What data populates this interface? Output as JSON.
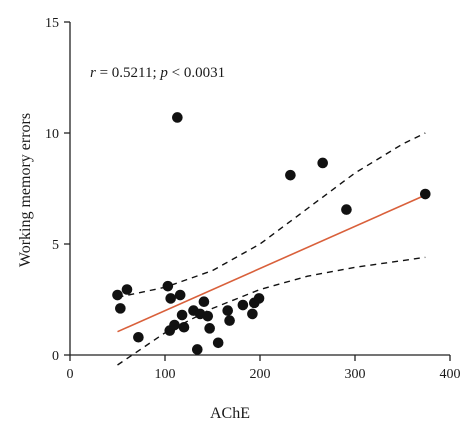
{
  "chart_data": {
    "type": "scatter",
    "xlabel": "AChE",
    "ylabel": "Working memory errors",
    "xlim": [
      0,
      400
    ],
    "ylim": [
      0,
      15
    ],
    "xticks": [
      "0",
      "100",
      "200",
      "300",
      "400"
    ],
    "yticks": [
      "0",
      "5",
      "10",
      "15"
    ],
    "grid": false,
    "annotation": {
      "r_symbol": "r",
      "r_value": " = 0.5211; ",
      "p_symbol": "p",
      "p_value": " < 0.0031"
    },
    "colors": {
      "points": "#111111",
      "fit_line": "#d9603b",
      "confidence_band": "#111111",
      "axes": "#222222"
    },
    "points": [
      {
        "x": 50,
        "y": 2.7
      },
      {
        "x": 53,
        "y": 2.1
      },
      {
        "x": 60,
        "y": 2.95
      },
      {
        "x": 72,
        "y": 0.8
      },
      {
        "x": 103,
        "y": 3.1
      },
      {
        "x": 105,
        "y": 1.1
      },
      {
        "x": 106,
        "y": 2.55
      },
      {
        "x": 110,
        "y": 1.35
      },
      {
        "x": 113,
        "y": 10.7
      },
      {
        "x": 116,
        "y": 2.7
      },
      {
        "x": 118,
        "y": 1.8
      },
      {
        "x": 120,
        "y": 1.25
      },
      {
        "x": 130,
        "y": 2.0
      },
      {
        "x": 134,
        "y": 0.25
      },
      {
        "x": 137,
        "y": 1.85
      },
      {
        "x": 141,
        "y": 2.4
      },
      {
        "x": 145,
        "y": 1.75
      },
      {
        "x": 147,
        "y": 1.2
      },
      {
        "x": 156,
        "y": 0.55
      },
      {
        "x": 166,
        "y": 2.0
      },
      {
        "x": 168,
        "y": 1.55
      },
      {
        "x": 182,
        "y": 2.25
      },
      {
        "x": 192,
        "y": 1.85
      },
      {
        "x": 194,
        "y": 2.35
      },
      {
        "x": 199,
        "y": 2.55
      },
      {
        "x": 232,
        "y": 8.1
      },
      {
        "x": 266,
        "y": 8.65
      },
      {
        "x": 291,
        "y": 6.55
      },
      {
        "x": 374,
        "y": 7.25
      }
    ],
    "fit_line": [
      {
        "x": 50,
        "y": 1.05
      },
      {
        "x": 374,
        "y": 7.2
      }
    ],
    "confidence_upper": [
      {
        "x": 50,
        "y": 2.6
      },
      {
        "x": 100,
        "y": 3.05
      },
      {
        "x": 150,
        "y": 3.8
      },
      {
        "x": 200,
        "y": 5.0
      },
      {
        "x": 250,
        "y": 6.6
      },
      {
        "x": 300,
        "y": 8.2
      },
      {
        "x": 350,
        "y": 9.5
      },
      {
        "x": 374,
        "y": 10.0
      }
    ],
    "confidence_lower": [
      {
        "x": 50,
        "y": -0.45
      },
      {
        "x": 100,
        "y": 1.0
      },
      {
        "x": 150,
        "y": 2.1
      },
      {
        "x": 200,
        "y": 2.95
      },
      {
        "x": 250,
        "y": 3.55
      },
      {
        "x": 300,
        "y": 3.95
      },
      {
        "x": 350,
        "y": 4.25
      },
      {
        "x": 374,
        "y": 4.4
      }
    ]
  }
}
